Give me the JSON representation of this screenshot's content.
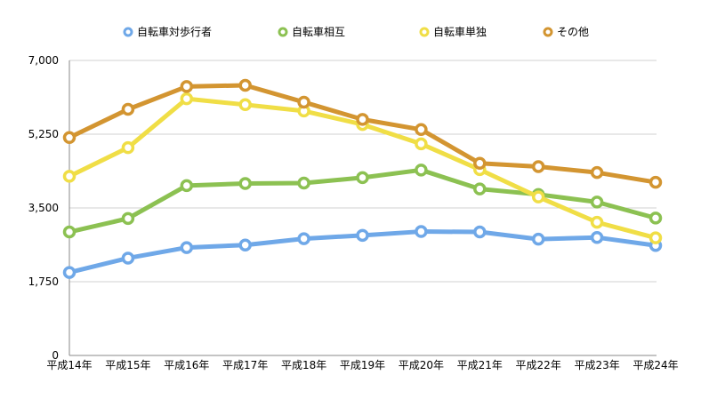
{
  "chart_data": {
    "type": "line",
    "categories": [
      "平成14年",
      "平成15年",
      "平成16年",
      "平成17年",
      "平成18年",
      "平成19年",
      "平成20年",
      "平成21年",
      "平成22年",
      "平成23年",
      "平成24年"
    ],
    "y_ticks": [
      "0",
      "1,750",
      "3,500",
      "5,250",
      "7,000"
    ],
    "ylim": [
      0,
      7000
    ],
    "grid": true,
    "legend_position": "top",
    "series": [
      {
        "name": "自転車対歩行者",
        "color": "#6fa8e8",
        "values": [
          1970,
          2310,
          2560,
          2620,
          2770,
          2850,
          2940,
          2930,
          2760,
          2800,
          2610
        ]
      },
      {
        "name": "自転車相互",
        "color": "#8cc152",
        "values": [
          2930,
          3250,
          4030,
          4080,
          4090,
          4220,
          4400,
          3950,
          3820,
          3640,
          3260
        ]
      },
      {
        "name": "自転車単独",
        "color": "#f0de46",
        "values": [
          4250,
          4930,
          6090,
          5950,
          5800,
          5480,
          5020,
          4410,
          3760,
          3160,
          2790
        ]
      },
      {
        "name": "その他",
        "color": "#d39531",
        "values": [
          5170,
          5840,
          6380,
          6410,
          6010,
          5600,
          5360,
          4560,
          4480,
          4340,
          4110
        ]
      }
    ]
  }
}
